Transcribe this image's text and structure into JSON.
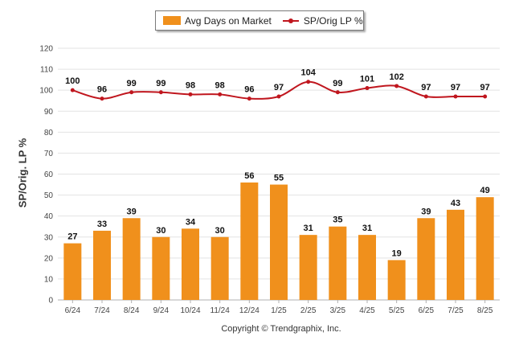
{
  "chart_data": {
    "type": "bar+line",
    "categories": [
      "6/24",
      "7/24",
      "8/24",
      "9/24",
      "10/24",
      "11/24",
      "12/24",
      "1/25",
      "2/25",
      "3/25",
      "4/25",
      "5/25",
      "6/25",
      "7/25",
      "8/25"
    ],
    "series": [
      {
        "name": "Avg Days on Market",
        "type": "bar",
        "color": "#f0901c",
        "values": [
          27,
          33,
          39,
          30,
          34,
          30,
          56,
          55,
          31,
          35,
          31,
          19,
          39,
          43,
          49
        ]
      },
      {
        "name": "SP/Orig LP %",
        "type": "line",
        "color": "#c0161e",
        "values": [
          100,
          96,
          99,
          99,
          98,
          98,
          96,
          97,
          104,
          99,
          101,
          102,
          97,
          97,
          97
        ]
      }
    ],
    "ylabel": "SP/Orig. LP %",
    "ylim": [
      0,
      120
    ],
    "yticks": [
      0,
      10,
      20,
      30,
      40,
      50,
      60,
      70,
      80,
      90,
      100,
      110,
      120
    ],
    "grid": true,
    "legend_position": "top-center"
  },
  "footer": {
    "copyright": "Copyright © Trendgraphix, Inc."
  }
}
